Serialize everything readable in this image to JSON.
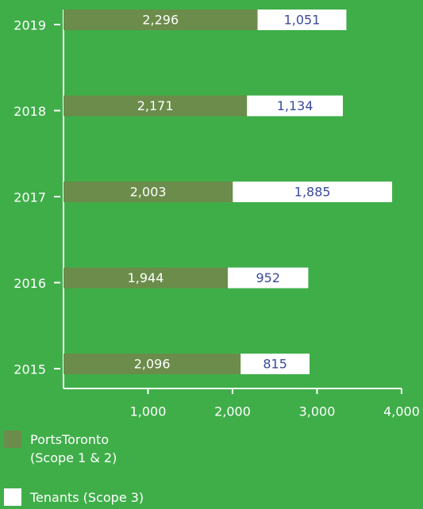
{
  "chart_data": {
    "type": "stacked-barh",
    "categories": [
      "2019",
      "2018",
      "2017",
      "2016",
      "2015"
    ],
    "series": [
      {
        "name": "PortsToronto (Scope 1 & 2)",
        "color": "#6b8c4a",
        "label_color": "#ffffff",
        "values": [
          2296,
          2171,
          2003,
          1944,
          2096
        ],
        "value_labels": [
          "2,296",
          "2,171",
          "2,003",
          "1,944",
          "2,096"
        ]
      },
      {
        "name": "Tenants (Scope 3)",
        "color": "#ffffff",
        "label_color": "#3a4a9a",
        "values": [
          1051,
          1134,
          1885,
          952,
          815
        ],
        "value_labels": [
          "1,051",
          "1,134",
          "1,885",
          "952",
          "815"
        ]
      }
    ],
    "xlim": [
      0,
      4000
    ],
    "xticks": [
      {
        "value": 1000,
        "label": "1,000"
      },
      {
        "value": 2000,
        "label": "2,000"
      },
      {
        "value": 3000,
        "label": "3,000"
      },
      {
        "value": 4000,
        "label": "4,000"
      }
    ],
    "background": "#3fae49"
  }
}
